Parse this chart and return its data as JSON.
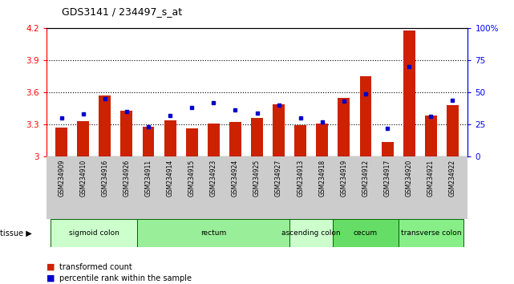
{
  "title": "GDS3141 / 234497_s_at",
  "samples": [
    "GSM234909",
    "GSM234910",
    "GSM234916",
    "GSM234926",
    "GSM234911",
    "GSM234914",
    "GSM234915",
    "GSM234923",
    "GSM234924",
    "GSM234925",
    "GSM234927",
    "GSM234913",
    "GSM234918",
    "GSM234919",
    "GSM234912",
    "GSM234917",
    "GSM234920",
    "GSM234921",
    "GSM234922"
  ],
  "red_values": [
    3.27,
    3.33,
    3.57,
    3.43,
    3.28,
    3.34,
    3.26,
    3.31,
    3.32,
    3.36,
    3.49,
    3.29,
    3.31,
    3.55,
    3.75,
    3.13,
    4.18,
    3.38,
    3.48
  ],
  "blue_values": [
    30,
    33,
    45,
    35,
    23,
    32,
    38,
    42,
    36,
    34,
    40,
    30,
    27,
    43,
    49,
    22,
    70,
    31,
    44
  ],
  "ylim_left": [
    3.0,
    4.2
  ],
  "ylim_right": [
    0,
    100
  ],
  "yticks_left": [
    3.0,
    3.3,
    3.6,
    3.9,
    4.2
  ],
  "yticks_right": [
    0,
    25,
    50,
    75,
    100
  ],
  "ytick_labels_left": [
    "3",
    "3.3",
    "3.6",
    "3.9",
    "4.2"
  ],
  "ytick_labels_right": [
    "0",
    "25",
    "50",
    "75",
    "100%"
  ],
  "grid_values": [
    3.3,
    3.6,
    3.9
  ],
  "tissues": [
    {
      "label": "sigmoid colon",
      "start": 0,
      "end": 4,
      "color": "#ccffcc"
    },
    {
      "label": "rectum",
      "start": 4,
      "end": 11,
      "color": "#99ee99"
    },
    {
      "label": "ascending colon",
      "start": 11,
      "end": 13,
      "color": "#ccffcc"
    },
    {
      "label": "cecum",
      "start": 13,
      "end": 16,
      "color": "#66dd66"
    },
    {
      "label": "transverse colon",
      "start": 16,
      "end": 19,
      "color": "#88ee88"
    }
  ],
  "bar_color": "#cc2200",
  "dot_color": "#0000cc",
  "bar_width": 0.55,
  "bg_color": "#ffffff",
  "xlabelarea_color": "#cccccc",
  "tissue_border_color": "#006600",
  "legend_items": [
    "transformed count",
    "percentile rank within the sample"
  ],
  "n_samples": 19
}
